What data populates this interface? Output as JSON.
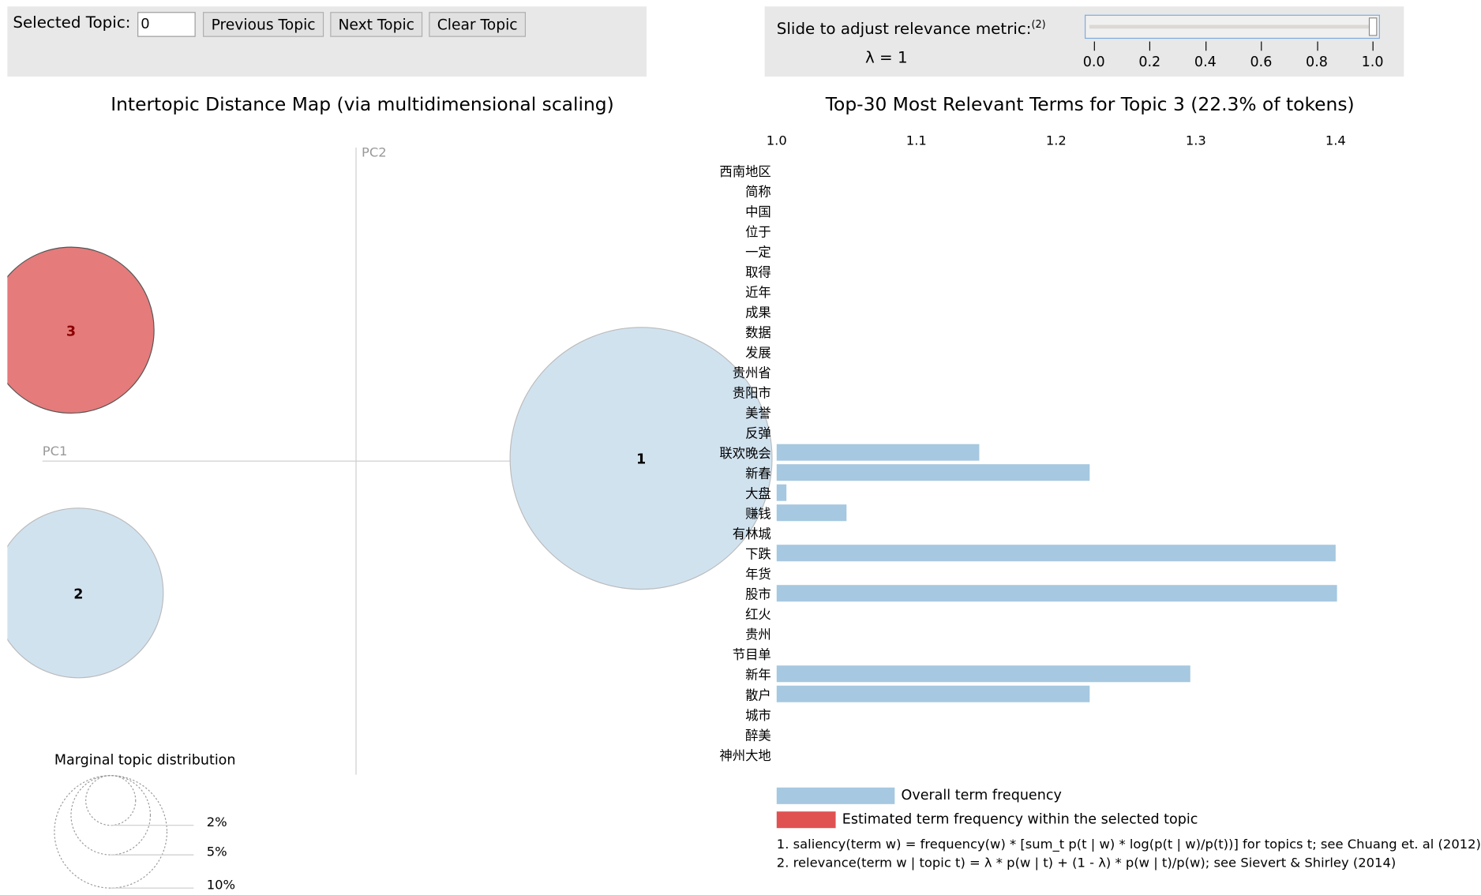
{
  "controls": {
    "selected_topic_label": "Selected Topic:",
    "selected_topic_value": "0",
    "previous_label": "Previous Topic",
    "next_label": "Next Topic",
    "clear_label": "Clear Topic"
  },
  "slider": {
    "label": "Slide to adjust relevance metric:",
    "footnote_ref": "(2)",
    "lambda_text": "λ = 1",
    "value": 1.0,
    "ticks": [
      "0.0",
      "0.2",
      "0.4",
      "0.6",
      "0.8",
      "1.0"
    ]
  },
  "left": {
    "title": "Intertopic Distance Map (via multidimensional scaling)",
    "pc1": "PC1",
    "pc2": "PC2",
    "topics": [
      {
        "id": "3",
        "color": "#e57b7b",
        "selected": true
      },
      {
        "id": "2",
        "color": "#d1e2ef",
        "selected": false
      },
      {
        "id": "1",
        "color": "#d1e2ef",
        "selected": false
      }
    ],
    "marginal_title": "Marginal topic distribution",
    "marginal_labels": [
      "2%",
      "5%",
      "10%"
    ]
  },
  "right": {
    "title": "Top-30 Most Relevant Terms for Topic 3 (22.3% of tokens)",
    "bar_color": "#a6c8e0",
    "topic_color": "#e05252"
  },
  "chart_data": {
    "type": "bar",
    "orientation": "horizontal",
    "title": "Top-30 Most Relevant Terms for Topic 3 (22.3% of tokens)",
    "xlim": [
      1.0,
      1.4
    ],
    "xticks": [
      "1.0",
      "1.1",
      "1.2",
      "1.3",
      "1.4"
    ],
    "categories": [
      "西南地区",
      "简称",
      "中国",
      "位于",
      "一定",
      "取得",
      "近年",
      "成果",
      "数据",
      "发展",
      "贵州省",
      "贵阳市",
      "美誉",
      "反弹",
      "联欢晚会",
      "新春",
      "大盘",
      "赚钱",
      "有林城",
      "下跌",
      "年货",
      "股市",
      "红火",
      "贵州",
      "节目单",
      "新年",
      "散户",
      "城市",
      "醉美",
      "神州大地"
    ],
    "series": [
      {
        "name": "Overall term frequency",
        "values": [
          1,
          1,
          1,
          1,
          1,
          1,
          1,
          1,
          1,
          1,
          1,
          1,
          1,
          1,
          1.145,
          1.224,
          1.007,
          1.05,
          1,
          1.4,
          1,
          1.401,
          1,
          1,
          1,
          1.296,
          1.224,
          1,
          1,
          1
        ]
      }
    ]
  },
  "legend": {
    "overall": "Overall term frequency",
    "estimated": "Estimated term frequency within the selected topic"
  },
  "footnotes": [
    "1. saliency(term w) = frequency(w) * [sum_t p(t | w) * log(p(t | w)/p(t))] for topics t; see Chuang et. al (2012)",
    "2. relevance(term w | topic t) = λ * p(w | t) + (1 - λ) * p(w | t)/p(w); see Sievert & Shirley (2014)"
  ]
}
